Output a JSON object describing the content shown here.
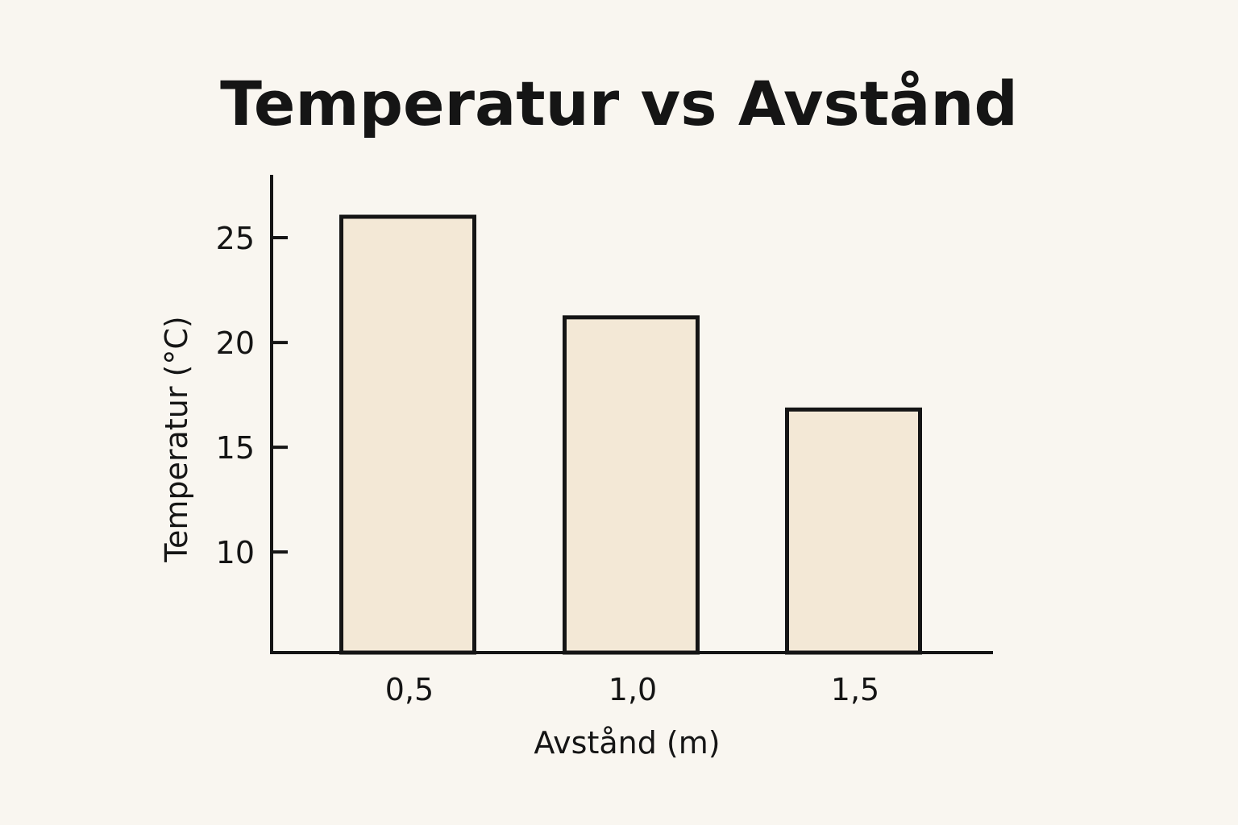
{
  "chart_data": {
    "type": "bar",
    "title": "Temperatur vs Avstånd",
    "xlabel": "Avstånd (m)",
    "ylabel": "Temperatur (°C)",
    "categories": [
      "0,5",
      "1,0",
      "1,5"
    ],
    "values": [
      26,
      21.2,
      16.8
    ],
    "yticks": [
      10,
      15,
      20,
      25
    ],
    "ylim": [
      5.2,
      28
    ],
    "grid": false,
    "legend": false,
    "bar_fill": "#f3e8d6",
    "bar_stroke": "#151515"
  }
}
